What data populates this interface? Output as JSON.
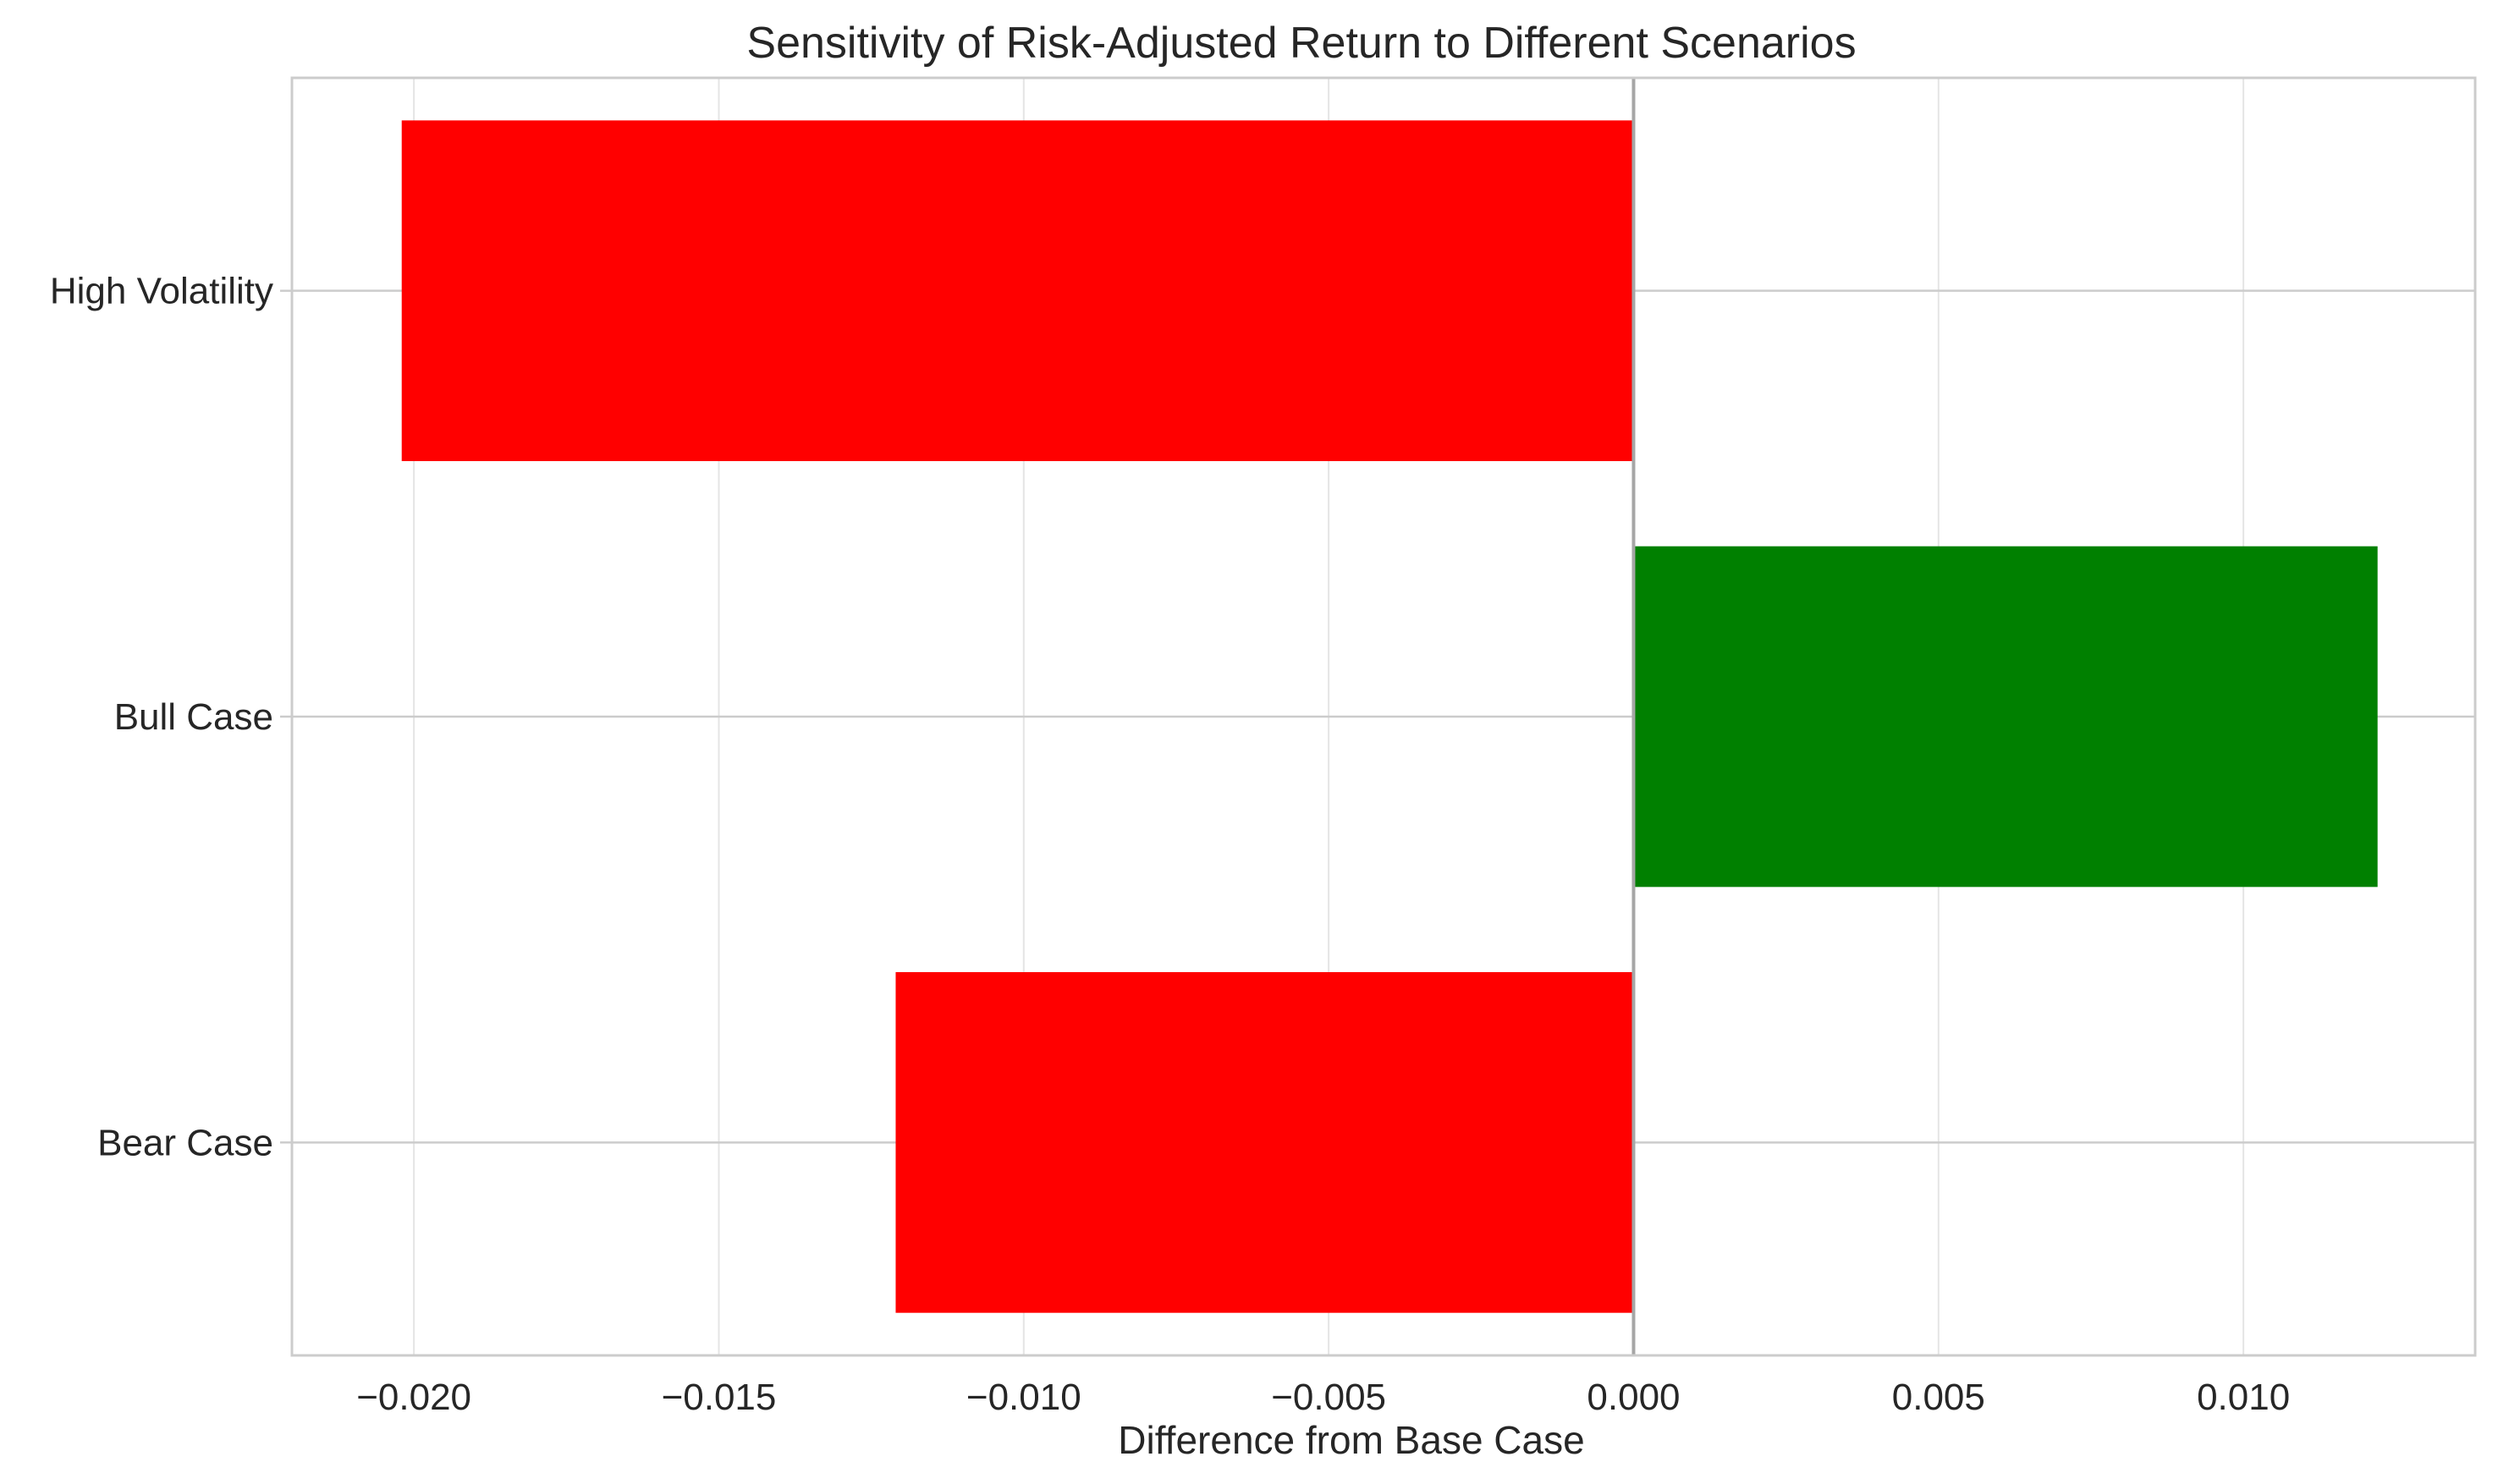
{
  "chart_data": {
    "type": "bar",
    "orientation": "horizontal",
    "title": "Sensitivity of Risk-Adjusted Return to Different Scenarios",
    "xlabel": "Difference from Base Case",
    "ylabel": "",
    "categories": [
      "High Volatility",
      "Bull Case",
      "Bear Case"
    ],
    "values": [
      -0.0202,
      0.0122,
      -0.0121
    ],
    "bar_colors": [
      "#ff0000",
      "#008000",
      "#ff0000"
    ],
    "xlim": [
      -0.022,
      0.0138
    ],
    "xticks": [
      -0.02,
      -0.015,
      -0.01,
      -0.005,
      0.0,
      0.005,
      0.01
    ],
    "xtick_labels": [
      "−0.020",
      "−0.015",
      "−0.010",
      "−0.005",
      "0.000",
      "0.005",
      "0.010"
    ],
    "reference_line": 0.0,
    "grid": true,
    "legend": "none"
  }
}
